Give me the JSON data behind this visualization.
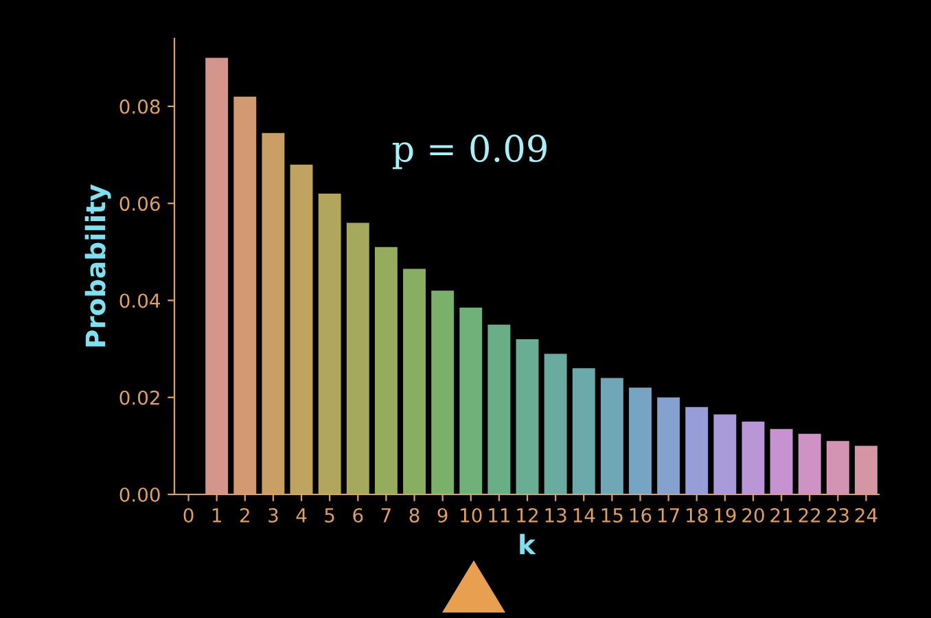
{
  "chart_data": {
    "type": "bar",
    "xlabel": "k",
    "ylabel": "Probability",
    "annotations": [
      "p = 0.09"
    ],
    "x": [
      1,
      2,
      3,
      4,
      5,
      6,
      7,
      8,
      9,
      10,
      11,
      12,
      13,
      14,
      15,
      16,
      17,
      18,
      19,
      20,
      21,
      22,
      23,
      24
    ],
    "values": [
      0.09,
      0.082,
      0.0745,
      0.068,
      0.062,
      0.056,
      0.051,
      0.0465,
      0.042,
      0.0385,
      0.035,
      0.032,
      0.029,
      0.026,
      0.024,
      0.022,
      0.02,
      0.018,
      0.0165,
      0.015,
      0.0135,
      0.0125,
      0.011,
      0.01
    ],
    "colors": [
      "#d4958c",
      "#d19a72",
      "#c99f66",
      "#bfa361",
      "#b2a65d",
      "#a5a95d",
      "#97ab5e",
      "#88ae62",
      "#7bb06a",
      "#70b079",
      "#6aae88",
      "#69ad95",
      "#6aaba0",
      "#6ca9ab",
      "#70a7b7",
      "#78a4c3",
      "#85a1cf",
      "#979dd7",
      "#a99ad9",
      "#b996d6",
      "#c693d0",
      "#cf92c4",
      "#d394b4",
      "#d496a4"
    ],
    "xlim": [
      -0.5,
      24.45
    ],
    "xticks": [
      0,
      1,
      2,
      3,
      4,
      5,
      6,
      7,
      8,
      9,
      10,
      11,
      12,
      13,
      14,
      15,
      16,
      17,
      18,
      19,
      20,
      21,
      22,
      23,
      24
    ],
    "ylim": [
      0,
      0.094
    ],
    "yticks": [
      {
        "value": 0,
        "label": "0.00"
      },
      {
        "value": 0.02,
        "label": "0.02"
      },
      {
        "value": 0.04,
        "label": "0.04"
      },
      {
        "value": 0.06,
        "label": "0.06"
      },
      {
        "value": 0.08,
        "label": "0.08"
      }
    ],
    "grid": false,
    "legend": false
  }
}
